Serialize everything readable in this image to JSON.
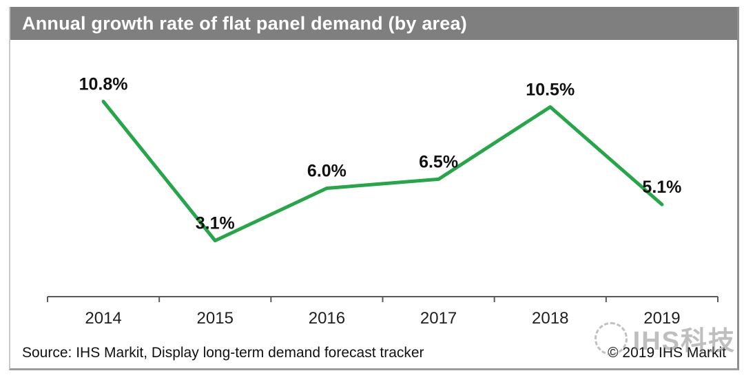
{
  "figure": {
    "title": "Annual growth rate of flat panel demand (by area)",
    "source_note": "Source: IHS Markit, Display long-term demand forecast tracker",
    "copyright": "© 2019 IHS Markit",
    "watermark": "IHS科技",
    "colors": {
      "line": "#25a648",
      "title_bar_bg": "#7f7f7f",
      "title_text": "#ffffff",
      "axis": "#595959",
      "data_label": "#111111",
      "tick_label": "#1f1f1f"
    }
  },
  "chart_data": {
    "type": "line",
    "categories": [
      "2014",
      "2015",
      "2016",
      "2017",
      "2018",
      "2019"
    ],
    "values": [
      10.8,
      3.1,
      6.0,
      6.5,
      10.5,
      5.1
    ],
    "point_labels": [
      "10.8%",
      "3.1%",
      "6.0%",
      "6.5%",
      "10.5%",
      "5.1%"
    ],
    "title": "Annual growth rate of flat panel demand (by area)",
    "xlabel": "",
    "ylabel": "",
    "ylim": [
      0,
      12
    ],
    "grid": false,
    "legend": false,
    "notes": "single green series, labels above points, x-axis only with ticks between categories"
  }
}
